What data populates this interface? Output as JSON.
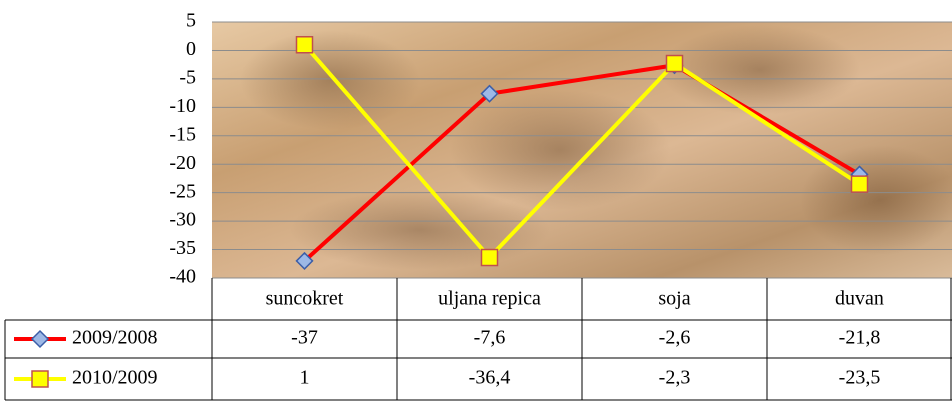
{
  "chart_data": {
    "type": "line",
    "categories": [
      "suncokret",
      "uljana repica",
      "soja",
      "duvan"
    ],
    "series": [
      {
        "name": "2009/2008",
        "color": "#ff0000",
        "marker": "diamond",
        "values": [
          -37,
          -7.6,
          -2.6,
          -21.8
        ],
        "value_labels": [
          "-37",
          "-7,6",
          "-2,6",
          "-21,8"
        ]
      },
      {
        "name": "2010/2009",
        "color": "#ffff00",
        "marker": "square",
        "values": [
          1,
          -36.4,
          -2.3,
          -23.5
        ],
        "value_labels": [
          "1",
          "-36,4",
          "-2,3",
          "-23,5"
        ]
      }
    ],
    "ylim": [
      -40,
      5
    ],
    "yticks": [
      5,
      0,
      -5,
      -10,
      -15,
      -20,
      -25,
      -30,
      -35,
      -40
    ],
    "grid": true
  }
}
